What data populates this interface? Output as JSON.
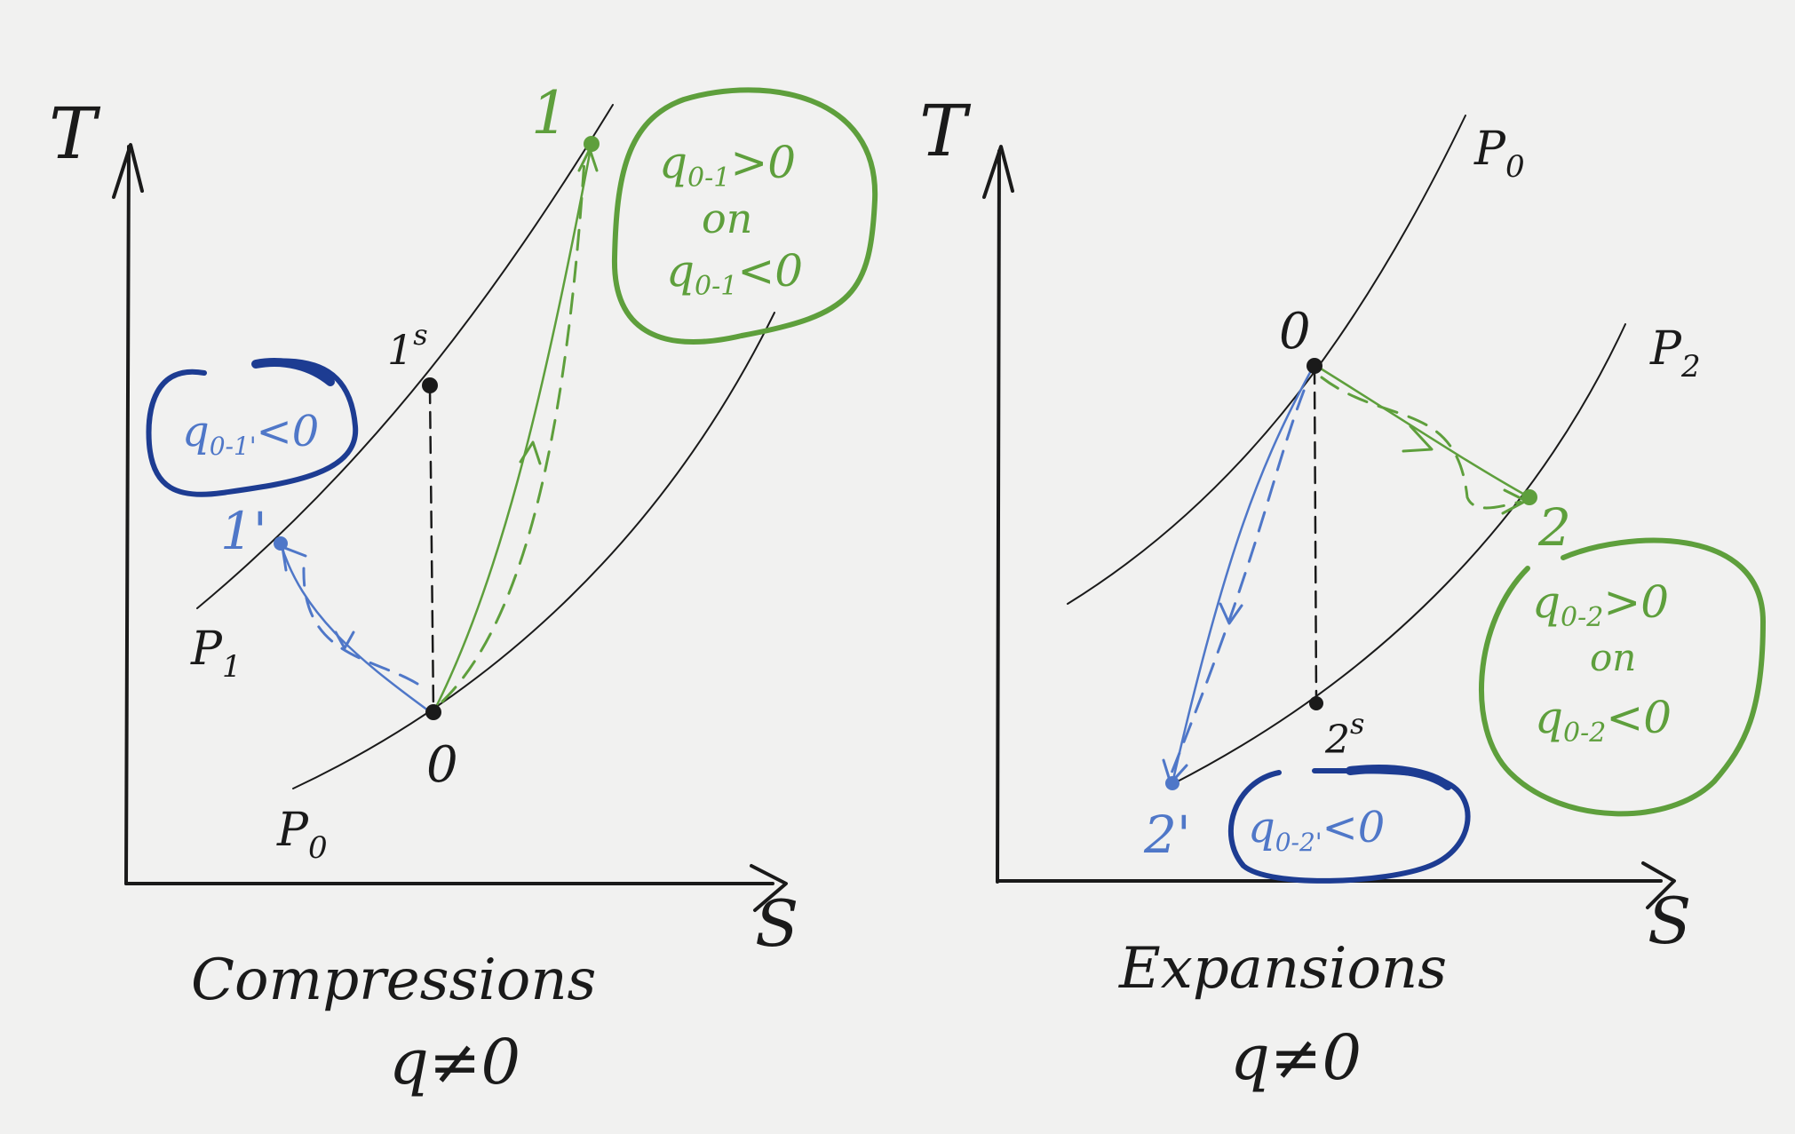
{
  "colors": {
    "paper": "#f1f1f0",
    "black": "#1a1a1a",
    "green": "#5e9f3c",
    "blue": "#4f77c8",
    "dark_blue": "#1d3c92"
  },
  "left_diagram": {
    "axis_y_label": "T",
    "axis_x_label": "S",
    "isobar_low_label": "P",
    "isobar_low_sub": "0",
    "isobar_high_label": "P",
    "isobar_high_sub": "1",
    "point_0": "0",
    "point_1s": "1",
    "point_1s_sup": "s",
    "point_1": "1",
    "point_1prime": "1'",
    "green_note": {
      "line1": "q",
      "line1_sub": "0-1",
      "line1_rest": ">0",
      "line2": "on",
      "line3": "q",
      "line3_sub": "0-1",
      "line3_rest": "<0"
    },
    "blue_note": {
      "q": "q",
      "sub": "0-1'",
      "rest": "<0"
    },
    "caption": "Compressions",
    "caption2": "q≠0"
  },
  "right_diagram": {
    "axis_y_label": "T",
    "axis_x_label": "S",
    "isobar_high_label": "P",
    "isobar_high_sub": "0",
    "isobar_low_label": "P",
    "isobar_low_sub": "2",
    "point_0": "0",
    "point_2": "2",
    "point_2s": "2",
    "point_2s_sup": "s",
    "point_2prime": "2'",
    "green_note": {
      "line1": "q",
      "line1_sub": "0-2",
      "line1_rest": ">0",
      "line2": "on",
      "line3": "q",
      "line3_sub": "0-2",
      "line3_rest": "<0"
    },
    "blue_note": {
      "q": "q",
      "sub": "0-2'",
      "rest": "<0"
    },
    "caption": "Expansions",
    "caption2": "q≠0"
  }
}
